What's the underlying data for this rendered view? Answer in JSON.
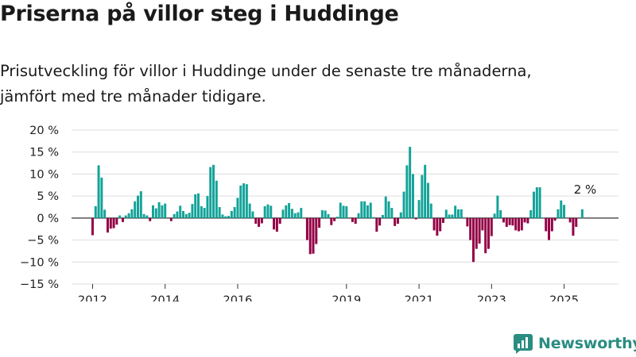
{
  "title": "Priserna på villor steg i Huddinge",
  "subtitle": [
    "Prisutveckling för villor i Huddinge under de senaste tre månaderna,",
    "jämfört med tre månader tidigare."
  ],
  "brand": {
    "name": "Newsworthy",
    "color": "#2a8d82"
  },
  "chart_data": {
    "type": "bar",
    "title": "",
    "xlabel": "",
    "ylabel": "",
    "ylim": [
      -15,
      20
    ],
    "yticks": [
      20,
      15,
      10,
      5,
      0,
      -5,
      -10,
      -15
    ],
    "ytick_labels": [
      "20 %",
      "15 %",
      "10 %",
      "5 %",
      "0 %",
      "−5 %",
      "−10 %",
      "−15 %"
    ],
    "xticks": [
      {
        "label": "2012",
        "x": 2012.0
      },
      {
        "label": "2014",
        "x": 2014.0
      },
      {
        "label": "2016",
        "x": 2016.0
      },
      {
        "label": "2019",
        "x": 2019.0
      },
      {
        "label": "2021",
        "x": 2021.0
      },
      {
        "label": "2023",
        "x": 2023.0
      },
      {
        "label": "2025",
        "x": 2025.0
      }
    ],
    "xlim": [
      2011.42,
      2026.5
    ],
    "positive_color": "#13a399",
    "negative_color": "#930045",
    "grid": true,
    "annotation": {
      "text": "2 %",
      "x": 2025.58,
      "y": 2
    },
    "series": [
      {
        "x_start": 2012.0,
        "x_step": 0.08333,
        "values": [
          -3.9,
          2.7,
          12,
          9.2,
          1.9,
          -3.3,
          -2.4,
          -2.3,
          -1.5,
          0.6,
          -0.9,
          0.6,
          1.1,
          2,
          3.8,
          5.1,
          6.1,
          0.9,
          0.6,
          -0.7,
          2.9,
          2.2,
          3.6,
          2.9,
          3.3,
          0,
          -0.7,
          0.9,
          1.5,
          2.8,
          1.6,
          0.9,
          1.2,
          3.2,
          5.4,
          5.6,
          2.7,
          2.3,
          5,
          11.6,
          12.1,
          8.5,
          2.5,
          0.8,
          0.4,
          0.5,
          1.6,
          2.5,
          4.6,
          7.4,
          7.9,
          7.7,
          3.3,
          1.5,
          -1.3,
          -2,
          -1.2,
          2.7,
          3.1,
          2.8,
          -2.6,
          -3.1,
          -1.3,
          1.9,
          2.9,
          3.4,
          2.1,
          1.1,
          1.3,
          2.3,
          0,
          -5,
          -8.2,
          -8.1,
          -5.9,
          -2.2,
          1.8,
          1.7,
          0.9,
          -1.6,
          -0.7,
          0.3,
          3.5,
          2.8,
          2.7,
          0,
          -0.9,
          -1.3,
          1.1,
          3.8,
          3.8,
          2.9,
          3.5,
          0.2,
          -3.1,
          -1.7,
          0.7,
          4.9,
          3.8,
          2.3,
          -1.8,
          -1.3,
          1.3,
          6,
          12,
          16.2,
          10,
          -0.3,
          4.1,
          9.8,
          12.1,
          8,
          3.3,
          -2.8,
          -4,
          -3,
          -1.1,
          1.9,
          0.8,
          0.8,
          2.8,
          2,
          2,
          0,
          -1.9,
          -5,
          -10,
          -7,
          -5.8,
          -2.8,
          -8,
          -7,
          -4.1,
          1,
          5.1,
          1.8,
          -1,
          -2,
          -1.6,
          -1.7,
          -2.8,
          -3,
          -2.8,
          -1,
          -1.2,
          1.8,
          6,
          7,
          7,
          0.1,
          -3,
          -5,
          -3,
          -0.6,
          2,
          4,
          3,
          0,
          -1,
          -4,
          -2,
          0,
          2
        ]
      }
    ]
  }
}
